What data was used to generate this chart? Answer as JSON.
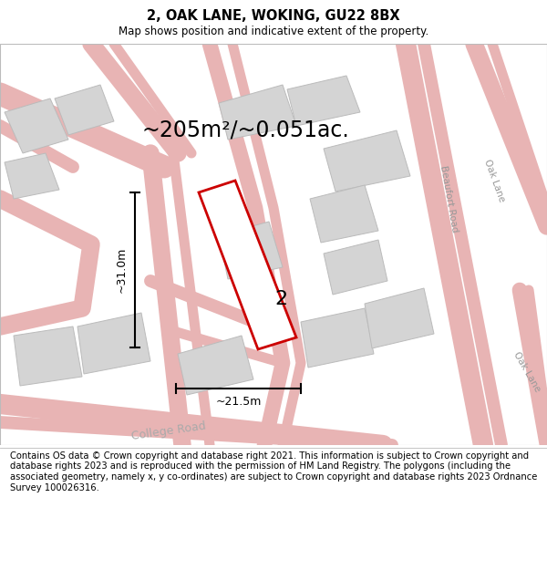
{
  "title": "2, OAK LANE, WOKING, GU22 8BX",
  "subtitle": "Map shows position and indicative extent of the property.",
  "area_text": "~205m²/~0.051ac.",
  "dim_width": "~21.5m",
  "dim_height": "~31.0m",
  "label": "2",
  "footer": "Contains OS data © Crown copyright and database right 2021. This information is subject to Crown copyright and database rights 2023 and is reproduced with the permission of HM Land Registry. The polygons (including the associated geometry, namely x, y co-ordinates) are subject to Crown copyright and database rights 2023 Ordnance Survey 100026316.",
  "bg_color": "#f0eeee",
  "road_color": "#e8b4b4",
  "road_color2": "#d49898",
  "building_fill": "#d4d4d4",
  "building_edge": "#bbbbbb",
  "footer_fontsize": 7.2,
  "title_fontsize": 10.5,
  "subtitle_fontsize": 8.5,
  "area_fontsize": 17,
  "label_fontsize": 16
}
